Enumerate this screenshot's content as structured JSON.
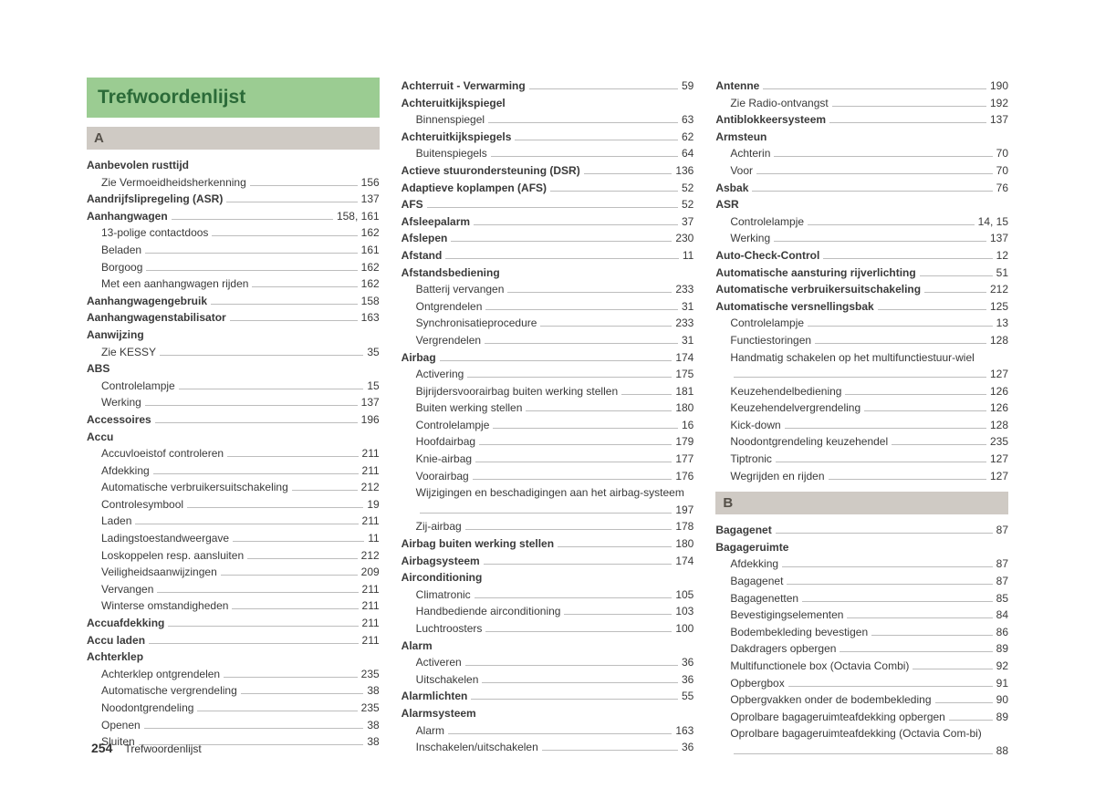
{
  "title": "Trefwoordenlijst",
  "footer": {
    "pageNumber": "254",
    "text": "Trefwoordenlijst"
  },
  "columns": [
    [
      {
        "type": "title"
      },
      {
        "type": "section",
        "letter": "A"
      },
      {
        "type": "entry",
        "bold": true,
        "label": "Aanbevolen rusttijd"
      },
      {
        "type": "entry",
        "sub": true,
        "label": "Zie Vermoeidheidsherkenning",
        "page": "156"
      },
      {
        "type": "entry",
        "bold": true,
        "label": "Aandrijfslipregeling (ASR)",
        "page": "137"
      },
      {
        "type": "entry",
        "bold": true,
        "label": "Aanhangwagen",
        "page": "158, 161"
      },
      {
        "type": "entry",
        "sub": true,
        "label": "13-polige contactdoos",
        "page": "162"
      },
      {
        "type": "entry",
        "sub": true,
        "label": "Beladen",
        "page": "161"
      },
      {
        "type": "entry",
        "sub": true,
        "label": "Borgoog",
        "page": "162"
      },
      {
        "type": "entry",
        "sub": true,
        "label": "Met een aanhangwagen rijden",
        "page": "162"
      },
      {
        "type": "entry",
        "bold": true,
        "label": "Aanhangwagengebruik",
        "page": "158"
      },
      {
        "type": "entry",
        "bold": true,
        "label": "Aanhangwagenstabilisator",
        "page": "163"
      },
      {
        "type": "entry",
        "bold": true,
        "label": "Aanwijzing"
      },
      {
        "type": "entry",
        "sub": true,
        "label": "Zie KESSY",
        "page": "35"
      },
      {
        "type": "entry",
        "bold": true,
        "label": "ABS"
      },
      {
        "type": "entry",
        "sub": true,
        "label": "Controlelampje",
        "page": "15"
      },
      {
        "type": "entry",
        "sub": true,
        "label": "Werking",
        "page": "137"
      },
      {
        "type": "entry",
        "bold": true,
        "label": "Accessoires",
        "page": "196"
      },
      {
        "type": "entry",
        "bold": true,
        "label": "Accu"
      },
      {
        "type": "entry",
        "sub": true,
        "label": "Accuvloeistof controleren",
        "page": "211"
      },
      {
        "type": "entry",
        "sub": true,
        "label": "Afdekking",
        "page": "211"
      },
      {
        "type": "entry",
        "sub": true,
        "label": "Automatische verbruikersuitschakeling",
        "page": "212"
      },
      {
        "type": "entry",
        "sub": true,
        "label": "Controlesymbool",
        "page": "19"
      },
      {
        "type": "entry",
        "sub": true,
        "label": "Laden",
        "page": "211"
      },
      {
        "type": "entry",
        "sub": true,
        "label": "Ladingstoestandweergave",
        "page": "11"
      },
      {
        "type": "entry",
        "sub": true,
        "label": "Loskoppelen resp. aansluiten",
        "page": "212"
      },
      {
        "type": "entry",
        "sub": true,
        "label": "Veiligheidsaanwijzingen",
        "page": "209"
      },
      {
        "type": "entry",
        "sub": true,
        "label": "Vervangen",
        "page": "211"
      },
      {
        "type": "entry",
        "sub": true,
        "label": "Winterse omstandigheden",
        "page": "211"
      },
      {
        "type": "entry",
        "bold": true,
        "label": "Accuafdekking",
        "page": "211"
      },
      {
        "type": "entry",
        "bold": true,
        "label": "Accu laden",
        "page": "211"
      },
      {
        "type": "entry",
        "bold": true,
        "label": "Achterklep"
      },
      {
        "type": "entry",
        "sub": true,
        "label": "Achterklep ontgrendelen",
        "page": "235"
      },
      {
        "type": "entry",
        "sub": true,
        "label": "Automatische vergrendeling",
        "page": "38"
      },
      {
        "type": "entry",
        "sub": true,
        "label": "Noodontgrendeling",
        "page": "235"
      },
      {
        "type": "entry",
        "sub": true,
        "label": "Openen",
        "page": "38"
      },
      {
        "type": "entry",
        "sub": true,
        "label": "Sluiten",
        "page": "38"
      }
    ],
    [
      {
        "type": "entry",
        "bold": true,
        "label": "Achterruit - Verwarming",
        "page": "59"
      },
      {
        "type": "entry",
        "bold": true,
        "label": "Achteruitkijkspiegel"
      },
      {
        "type": "entry",
        "sub": true,
        "label": "Binnenspiegel",
        "page": "63"
      },
      {
        "type": "entry",
        "bold": true,
        "label": "Achteruitkijkspiegels",
        "page": "62"
      },
      {
        "type": "entry",
        "sub": true,
        "label": "Buitenspiegels",
        "page": "64"
      },
      {
        "type": "entry",
        "bold": true,
        "label": "Actieve stuurondersteuning (DSR)",
        "page": "136"
      },
      {
        "type": "entry",
        "bold": true,
        "label": "Adaptieve koplampen (AFS)",
        "page": "52"
      },
      {
        "type": "entry",
        "bold": true,
        "label": "AFS",
        "page": "52"
      },
      {
        "type": "entry",
        "bold": true,
        "label": "Afsleepalarm",
        "page": "37"
      },
      {
        "type": "entry",
        "bold": true,
        "label": "Afslepen",
        "page": "230"
      },
      {
        "type": "entry",
        "bold": true,
        "label": "Afstand",
        "page": "11"
      },
      {
        "type": "entry",
        "bold": true,
        "label": "Afstandsbediening"
      },
      {
        "type": "entry",
        "sub": true,
        "label": "Batterij vervangen",
        "page": "233"
      },
      {
        "type": "entry",
        "sub": true,
        "label": "Ontgrendelen",
        "page": "31"
      },
      {
        "type": "entry",
        "sub": true,
        "label": "Synchronisatieprocedure",
        "page": "233"
      },
      {
        "type": "entry",
        "sub": true,
        "label": "Vergrendelen",
        "page": "31"
      },
      {
        "type": "entry",
        "bold": true,
        "label": "Airbag",
        "page": "174"
      },
      {
        "type": "entry",
        "sub": true,
        "label": "Activering",
        "page": "175"
      },
      {
        "type": "entry",
        "sub": true,
        "label": "Bijrijdersvoorairbag buiten werking stellen",
        "page": "181"
      },
      {
        "type": "entry",
        "sub": true,
        "label": "Buiten werking stellen",
        "page": "180"
      },
      {
        "type": "entry",
        "sub": true,
        "label": "Controlelampje",
        "page": "16"
      },
      {
        "type": "entry",
        "sub": true,
        "label": "Hoofdairbag",
        "page": "179"
      },
      {
        "type": "entry",
        "sub": true,
        "label": "Knie-airbag",
        "page": "177"
      },
      {
        "type": "entry",
        "sub": true,
        "label": "Voorairbag",
        "page": "176"
      },
      {
        "type": "entry",
        "sub": true,
        "wrap": true,
        "label": "Wijzigingen en beschadigingen aan het airbag-systeem",
        "page": "197"
      },
      {
        "type": "entry",
        "sub": true,
        "label": "Zij-airbag",
        "page": "178"
      },
      {
        "type": "entry",
        "bold": true,
        "label": "Airbag buiten werking stellen",
        "page": "180"
      },
      {
        "type": "entry",
        "bold": true,
        "label": "Airbagsysteem",
        "page": "174"
      },
      {
        "type": "entry",
        "bold": true,
        "label": "Airconditioning"
      },
      {
        "type": "entry",
        "sub": true,
        "label": "Climatronic",
        "page": "105"
      },
      {
        "type": "entry",
        "sub": true,
        "label": "Handbediende airconditioning",
        "page": "103"
      },
      {
        "type": "entry",
        "sub": true,
        "label": "Luchtroosters",
        "page": "100"
      },
      {
        "type": "entry",
        "bold": true,
        "label": "Alarm"
      },
      {
        "type": "entry",
        "sub": true,
        "label": "Activeren",
        "page": "36"
      },
      {
        "type": "entry",
        "sub": true,
        "label": "Uitschakelen",
        "page": "36"
      },
      {
        "type": "entry",
        "bold": true,
        "label": "Alarmlichten",
        "page": "55"
      },
      {
        "type": "entry",
        "bold": true,
        "label": "Alarmsysteem"
      },
      {
        "type": "entry",
        "sub": true,
        "label": "Alarm",
        "page": "163"
      },
      {
        "type": "entry",
        "sub": true,
        "label": "Inschakelen/uitschakelen",
        "page": "36"
      }
    ],
    [
      {
        "type": "entry",
        "bold": true,
        "label": "Antenne",
        "page": "190"
      },
      {
        "type": "entry",
        "sub": true,
        "label": "Zie Radio-ontvangst",
        "page": "192"
      },
      {
        "type": "entry",
        "bold": true,
        "label": "Antiblokkeersysteem",
        "page": "137"
      },
      {
        "type": "entry",
        "bold": true,
        "label": "Armsteun"
      },
      {
        "type": "entry",
        "sub": true,
        "label": "Achterin",
        "page": "70"
      },
      {
        "type": "entry",
        "sub": true,
        "label": "Voor",
        "page": "70"
      },
      {
        "type": "entry",
        "bold": true,
        "label": "Asbak",
        "page": "76"
      },
      {
        "type": "entry",
        "bold": true,
        "label": "ASR"
      },
      {
        "type": "entry",
        "sub": true,
        "label": "Controlelampje",
        "page": "14, 15"
      },
      {
        "type": "entry",
        "sub": true,
        "label": "Werking",
        "page": "137"
      },
      {
        "type": "entry",
        "bold": true,
        "label": "Auto-Check-Control",
        "page": "12"
      },
      {
        "type": "entry",
        "bold": true,
        "label": "Automatische aansturing rijverlichting",
        "page": "51"
      },
      {
        "type": "entry",
        "bold": true,
        "label": "Automatische verbruikersuitschakeling",
        "page": "212"
      },
      {
        "type": "entry",
        "bold": true,
        "label": "Automatische versnellingsbak",
        "page": "125"
      },
      {
        "type": "entry",
        "sub": true,
        "label": "Controlelampje",
        "page": "13"
      },
      {
        "type": "entry",
        "sub": true,
        "label": "Functiestoringen",
        "page": "128"
      },
      {
        "type": "entry",
        "sub": true,
        "wrap": true,
        "label": "Handmatig schakelen op het multifunctiestuur-wiel",
        "page": "127"
      },
      {
        "type": "entry",
        "sub": true,
        "label": "Keuzehendelbediening",
        "page": "126"
      },
      {
        "type": "entry",
        "sub": true,
        "label": "Keuzehendelvergrendeling",
        "page": "126"
      },
      {
        "type": "entry",
        "sub": true,
        "label": "Kick-down",
        "page": "128"
      },
      {
        "type": "entry",
        "sub": true,
        "label": "Noodontgrendeling keuzehendel",
        "page": "235"
      },
      {
        "type": "entry",
        "sub": true,
        "label": "Tiptronic",
        "page": "127"
      },
      {
        "type": "entry",
        "sub": true,
        "label": "Wegrijden en rijden",
        "page": "127"
      },
      {
        "type": "section",
        "letter": "B"
      },
      {
        "type": "entry",
        "bold": true,
        "label": "Bagagenet",
        "page": "87"
      },
      {
        "type": "entry",
        "bold": true,
        "label": "Bagageruimte"
      },
      {
        "type": "entry",
        "sub": true,
        "label": "Afdekking",
        "page": "87"
      },
      {
        "type": "entry",
        "sub": true,
        "label": "Bagagenet",
        "page": "87"
      },
      {
        "type": "entry",
        "sub": true,
        "label": "Bagagenetten",
        "page": "85"
      },
      {
        "type": "entry",
        "sub": true,
        "label": "Bevestigingselementen",
        "page": "84"
      },
      {
        "type": "entry",
        "sub": true,
        "label": "Bodembekleding bevestigen",
        "page": "86"
      },
      {
        "type": "entry",
        "sub": true,
        "label": "Dakdragers opbergen",
        "page": "89"
      },
      {
        "type": "entry",
        "sub": true,
        "label": "Multifunctionele box (Octavia Combi)",
        "page": "92"
      },
      {
        "type": "entry",
        "sub": true,
        "label": "Opbergbox",
        "page": "91"
      },
      {
        "type": "entry",
        "sub": true,
        "label": "Opbergvakken onder de bodembekleding",
        "page": "90"
      },
      {
        "type": "entry",
        "sub": true,
        "label": "Oprolbare bagageruimteafdekking opbergen",
        "page": "89"
      },
      {
        "type": "entry",
        "sub": true,
        "wrap": true,
        "label": "Oprolbare bagageruimteafdekking (Octavia Com-bi)",
        "page": "88"
      }
    ]
  ]
}
